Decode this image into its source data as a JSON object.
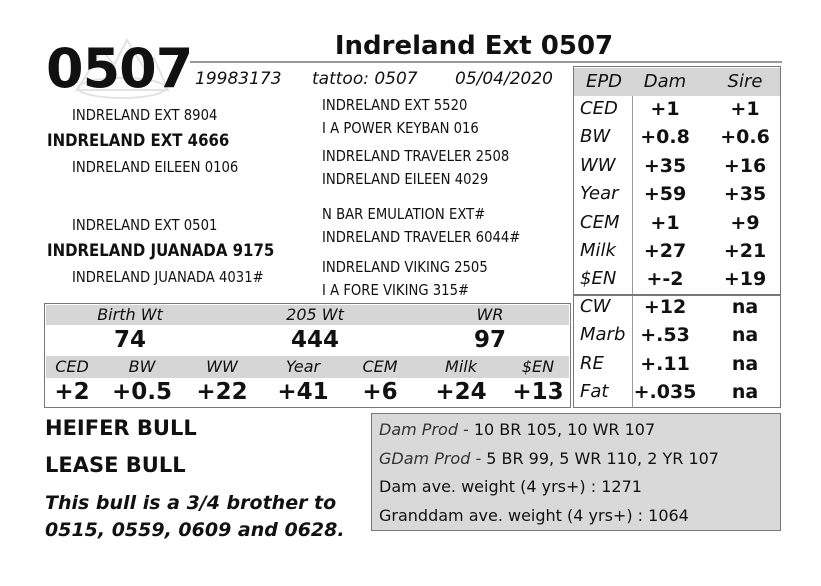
{
  "lot": "0507",
  "name": "Indreland Ext 0507",
  "registration": "19983173",
  "tattoo": "tattoo: 0507",
  "birth_date": "05/04/2020",
  "pedigree": {
    "sire": {
      "name": "INDRELAND EXT 4666",
      "sire": "INDRELAND EXT 8904",
      "dam": "INDRELAND EILEEN 0106",
      "sire_parents": [
        "INDRELAND EXT 5520",
        "I A POWER KEYBAN 016"
      ],
      "dam_parents": [
        "INDRELAND TRAVELER 2508",
        "INDRELAND EILEEN 4029"
      ]
    },
    "dam": {
      "name": "INDRELAND JUANADA 9175",
      "sire": "INDRELAND EXT 0501",
      "dam": "INDRELAND JUANADA 4031#",
      "sire_parents": [
        "N BAR EMULATION EXT#",
        "INDRELAND TRAVELER 6044#"
      ],
      "dam_parents": [
        "INDRELAND VIKING 2505",
        "I A FORE VIKING 315#"
      ]
    }
  },
  "performance": {
    "headers": [
      "Birth Wt",
      "205 Wt",
      "WR"
    ],
    "values": [
      "74",
      "444",
      "97"
    ]
  },
  "calf_epds": {
    "headers": [
      "CED",
      "BW",
      "WW",
      "Year",
      "CEM",
      "Milk",
      "$EN"
    ],
    "values": [
      "+2",
      "+0.5",
      "+22",
      "+41",
      "+6",
      "+24",
      "+13"
    ]
  },
  "parent_epds": {
    "headers": [
      "EPD",
      "Dam",
      "Sire"
    ],
    "rows": [
      [
        "CED",
        "+1",
        "+1"
      ],
      [
        "BW",
        "+0.8",
        "+0.6"
      ],
      [
        "WW",
        "+35",
        "+16"
      ],
      [
        "Year",
        "+59",
        "+35"
      ],
      [
        "CEM",
        "+1",
        "+9"
      ],
      [
        "Milk",
        "+27",
        "+21"
      ],
      [
        "$EN",
        "+-2",
        "+19"
      ]
    ],
    "carcass_rows": [
      [
        "CW",
        "+12",
        "na"
      ],
      [
        "Marb",
        "+.53",
        "na"
      ],
      [
        "RE",
        "+.11",
        "na"
      ],
      [
        "Fat",
        "+.035",
        "na"
      ]
    ]
  },
  "notes": [
    "HEIFER BULL",
    "LEASE BULL"
  ],
  "remark": "This bull is a 3/4 brother to 0515, 0559, 0609 and 0628.",
  "production": [
    {
      "label": "Dam Prod -",
      "text": "10 BR 105, 10 WR 107"
    },
    {
      "label": "GDam Prod -",
      "text": "5 BR 99, 5 WR 110, 2 YR 107"
    },
    {
      "text": "Dam ave. weight (4 yrs+) : 1271"
    },
    {
      "text": "Granddam ave. weight (4 yrs+) : 1064"
    }
  ]
}
